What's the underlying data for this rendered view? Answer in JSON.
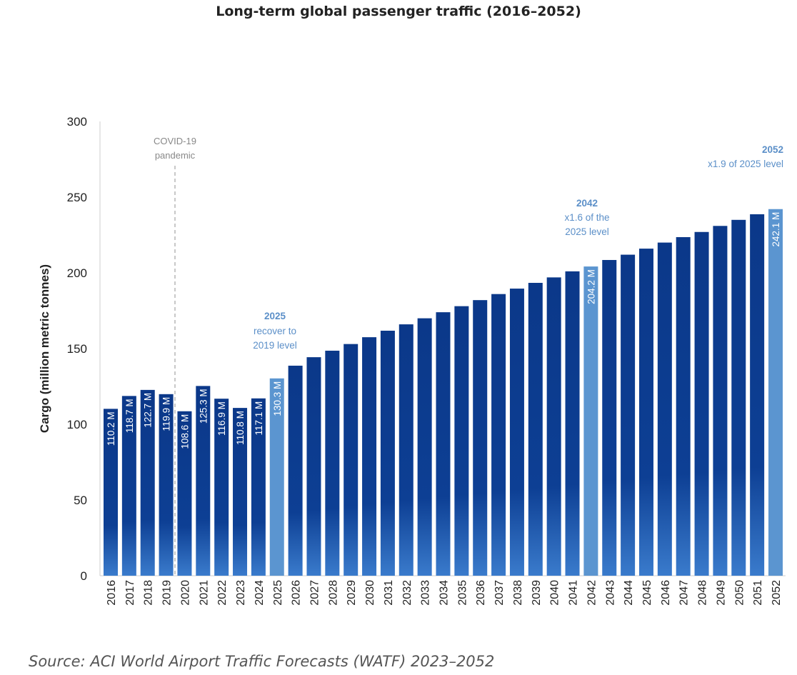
{
  "chart_data": {
    "type": "bar",
    "title": "Long-term global passenger traffic (2016–2052)",
    "xlabel": "",
    "ylabel": "Cargo (million metric tonnes)",
    "ylim": [
      0,
      300
    ],
    "yticks": [
      0,
      50,
      100,
      150,
      200,
      250,
      300
    ],
    "grid": false,
    "categories": [
      "2016",
      "2017",
      "2018",
      "2019",
      "2020",
      "2021",
      "2022",
      "2023",
      "2024",
      "2025",
      "2026",
      "2027",
      "2028",
      "2029",
      "2030",
      "2031",
      "2032",
      "2033",
      "2034",
      "2035",
      "2036",
      "2037",
      "2038",
      "2039",
      "2040",
      "2041",
      "2042",
      "2043",
      "2044",
      "2045",
      "2046",
      "2047",
      "2048",
      "2049",
      "2050",
      "2051",
      "2052"
    ],
    "values": [
      110.2,
      118.7,
      122.7,
      119.9,
      108.6,
      125.3,
      116.9,
      110.8,
      117.1,
      130.3,
      138.7,
      144.3,
      148.6,
      153,
      157.5,
      161.8,
      166,
      170,
      174,
      178,
      182,
      186,
      189.6,
      193.4,
      197,
      201,
      204.2,
      208.5,
      212,
      216,
      220,
      223.6,
      227,
      231,
      235,
      238.7,
      242.1
    ],
    "data_labels": {
      "2016": "110.2 M",
      "2017": "118.7 M",
      "2018": "122.7 M",
      "2019": "119.9 M",
      "2020": "108.6 M",
      "2021": "125.3 M",
      "2022": "116.9 M",
      "2023": "110.8 M",
      "2024": "117.1 M",
      "2025": "130.3 M",
      "2042": "204.2 M",
      "2052": "242.1 M"
    },
    "highlight": [
      "2025",
      "2042",
      "2052"
    ],
    "colors": {
      "bar_top": "#0b3889",
      "bar_bottom": "#3a7bcc",
      "highlight": "#5b95d0",
      "annotation": "#5b8fc8",
      "covid": "#888888"
    },
    "annotations": {
      "covid": [
        "COVID-19",
        "pandemic"
      ],
      "a2025": [
        "2025",
        "recover to",
        "2019 level"
      ],
      "a2042": [
        "2042",
        "x1.6 of the",
        "2025 level"
      ],
      "a2052": [
        "2052",
        "x1.9 of 2025 level"
      ]
    },
    "source": "Source: ACI World Airport Traffic Forecasts (WATF) 2023–2052"
  }
}
